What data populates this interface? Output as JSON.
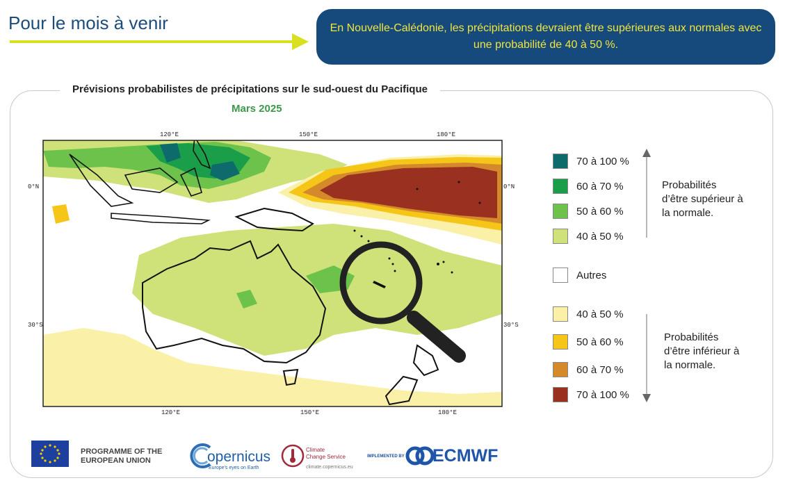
{
  "header": {
    "heading": "Pour le mois à venir",
    "banner_text": "En Nouvelle-Calédonie, les précipitations devraient être supérieures aux normales avec une probabilité de 40 à 50 %."
  },
  "map": {
    "title": "Prévisions probabilistes de précipitations sur le sud-ouest du Pacifique",
    "subtitle": "Mars 2025",
    "lon_labels_top": [
      "120°E",
      "150°E",
      "180°E"
    ],
    "lon_labels_bottom": [
      "120°E",
      "150°E",
      "180°E"
    ],
    "lat_labels_left": [
      "0°N",
      "30°S"
    ],
    "lat_labels_right": [
      "0°N",
      "30°S"
    ],
    "magnifier": "magnifying-glass-icon"
  },
  "legend": {
    "above": {
      "label": "Probabilités d’être supérieur à la normale.",
      "items": [
        {
          "label": "70 à 100 %",
          "color": "#0e6b6b"
        },
        {
          "label": "60 à 70 %",
          "color": "#1a9e4a"
        },
        {
          "label": "50 à 60 %",
          "color": "#6cc24a"
        },
        {
          "label": "40 à 50 %",
          "color": "#cfe27a"
        }
      ]
    },
    "other": {
      "label": "Autres",
      "color": "#ffffff"
    },
    "below": {
      "label": "Probabilités d’être  inférieur à la normale.",
      "items": [
        {
          "label": "40 à 50 %",
          "color": "#fbf0a8"
        },
        {
          "label": "50 à 60 %",
          "color": "#f5c518"
        },
        {
          "label": "60 à 70 %",
          "color": "#d48a2a"
        },
        {
          "label": "70 à 100 %",
          "color": "#9a3020"
        }
      ]
    }
  },
  "footer": {
    "eu_text": "PROGRAMME OF THE EUROPEAN UNION",
    "copernicus": "opernicus",
    "copernicus_tagline": "Europe's eyes on Earth",
    "c3s_line1": "Climate",
    "c3s_line2": "Change Service",
    "c3s_url": "climate.copernicus.eu",
    "implemented_by": "IMPLEMENTED BY",
    "ecmwf": "ECMWF"
  }
}
